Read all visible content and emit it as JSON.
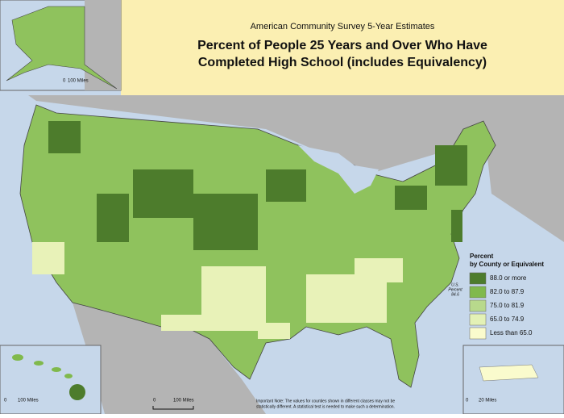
{
  "header": {
    "survey": "American Community Survey 5-Year Estimates",
    "title_lines": [
      "Percent of People 25 Years and Over Who Have",
      "Completed High School (includes Equivalency)"
    ]
  },
  "legend": {
    "title_lines": [
      "Percent",
      "by County or Equivalent"
    ],
    "items": [
      {
        "label": "88.0 or more",
        "color": "#4d7c2c"
      },
      {
        "label": "82.0 to 87.9",
        "color": "#80b94c"
      },
      {
        "label": "75.0 to 81.9",
        "color": "#b8d98c"
      },
      {
        "label": "65.0 to 74.9",
        "color": "#e3f1b6"
      },
      {
        "label": "Less than 65.0",
        "color": "#fafbcd"
      }
    ]
  },
  "us_percent": [
    "U.S.",
    "Percent",
    "84.6"
  ],
  "scales": {
    "alaska": [
      "0",
      "100 Miles"
    ],
    "hawaii": [
      "0",
      "100 Miles"
    ],
    "main": [
      "0",
      "100 Miles"
    ],
    "puerto_rico": [
      "0",
      "20 Miles"
    ]
  },
  "note": [
    "Important Note: The values for counties shown in different classes may not be",
    "statistically different.  A statistical test is needed to make such a determination."
  ]
}
